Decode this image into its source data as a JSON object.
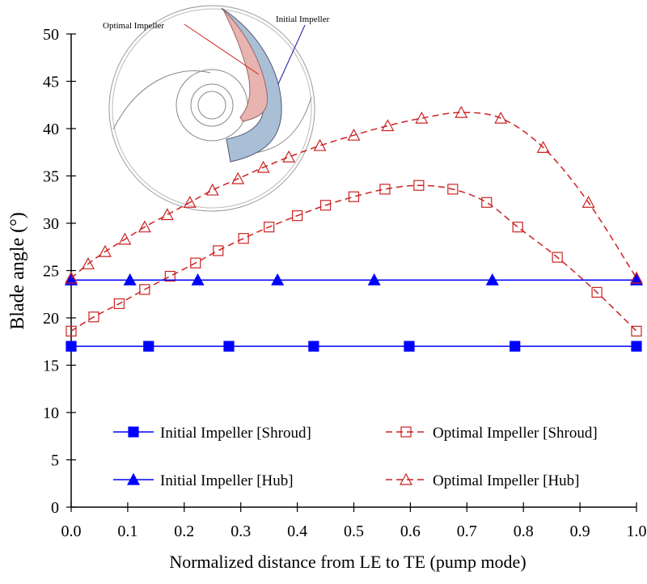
{
  "chart_data": {
    "type": "line",
    "title": "",
    "xlabel": "Normalized distance from LE to TE (pump mode)",
    "ylabel": "Blade angle (°)",
    "xlim": [
      0,
      1.0
    ],
    "ylim": [
      0,
      50
    ],
    "xticks": [
      "0.0",
      "0.1",
      "0.2",
      "0.3",
      "0.4",
      "0.5",
      "0.6",
      "0.7",
      "0.8",
      "0.9",
      "1.0"
    ],
    "yticks": [
      "0",
      "5",
      "10",
      "15",
      "20",
      "25",
      "30",
      "35",
      "40",
      "45",
      "50"
    ],
    "grid": false,
    "legend_placement": "bottom",
    "series": [
      {
        "name": "Initial Impeller [Shroud]",
        "color": "#0000ff",
        "marker": "filled-square",
        "line": "solid",
        "x": [
          0,
          0.137,
          0.279,
          0.429,
          0.598,
          0.785,
          1.0
        ],
        "y": [
          17,
          17,
          17,
          17,
          17,
          17,
          17
        ]
      },
      {
        "name": "Optimal Impeller [Shroud]",
        "color": "#cc2222",
        "marker": "open-square",
        "line": "dashed",
        "x": [
          0,
          0.04,
          0.085,
          0.13,
          0.175,
          0.22,
          0.26,
          0.305,
          0.35,
          0.4,
          0.45,
          0.5,
          0.555,
          0.615,
          0.675,
          0.735,
          0.79,
          0.86,
          0.93,
          1.0
        ],
        "y": [
          18.6,
          20.1,
          21.5,
          23.0,
          24.4,
          25.8,
          27.1,
          28.4,
          29.6,
          30.8,
          31.9,
          32.8,
          33.6,
          34.0,
          33.6,
          32.2,
          29.6,
          26.4,
          22.7,
          18.6
        ]
      },
      {
        "name": "Initial Impeller [Hub]",
        "color": "#0000ff",
        "marker": "filled-triangle",
        "line": "solid",
        "x": [
          0,
          0.104,
          0.224,
          0.365,
          0.536,
          0.745,
          1.0
        ],
        "y": [
          24,
          24,
          24,
          24,
          24,
          24,
          24
        ]
      },
      {
        "name": "Optimal Impeller [Hub]",
        "color": "#cc2222",
        "marker": "open-triangle",
        "line": "dashed",
        "x": [
          0,
          0.03,
          0.06,
          0.095,
          0.13,
          0.17,
          0.21,
          0.25,
          0.295,
          0.34,
          0.385,
          0.44,
          0.5,
          0.56,
          0.62,
          0.69,
          0.76,
          0.835,
          0.915,
          1.0
        ],
        "y": [
          24.2,
          25.7,
          27.0,
          28.3,
          29.6,
          30.9,
          32.2,
          33.5,
          34.7,
          35.9,
          37.0,
          38.2,
          39.3,
          40.3,
          41.1,
          41.7,
          41.1,
          38.0,
          32.2,
          24.2
        ]
      }
    ],
    "inset": {
      "labels": {
        "optimal": "Optimal Impeller",
        "initial": "Initial Impeller"
      },
      "colors": {
        "optimal_label": "#cc2222",
        "initial_label": "#1a1aaa",
        "optimal_blade": "#e8b4b0",
        "initial_blade": "#a9bfd6"
      }
    }
  }
}
